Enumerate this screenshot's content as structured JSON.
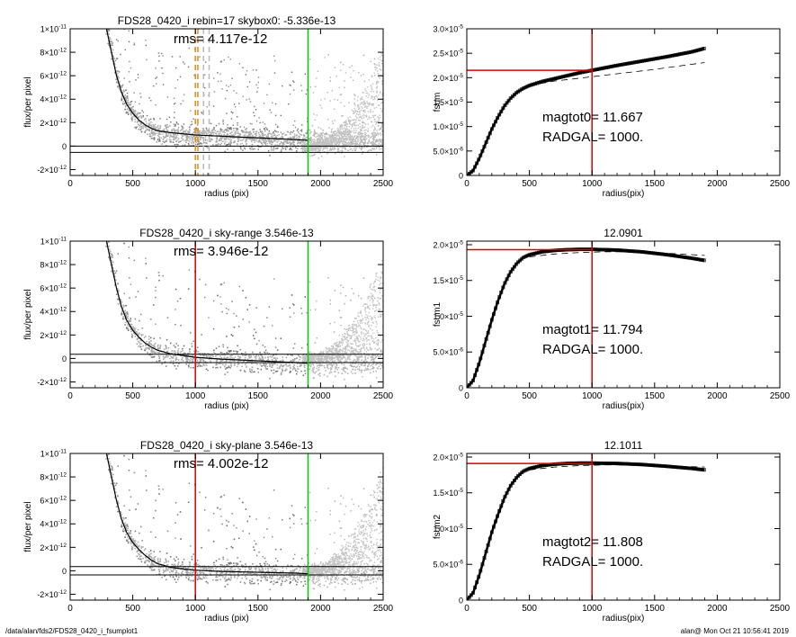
{
  "footer": {
    "path": "/data/alan/fds2/FDS28_0420_i_fsumplot1",
    "stamp": "alan@  Mon Oct 21 10:56:41 2019"
  },
  "chart_data": [
    {
      "type": "scatter",
      "title": "FDS28_0420_i rebin=17    skybox0: -5.336e-13",
      "annotation": "rms= 4.117e-12",
      "xlabel": "radius (pix)",
      "ylabel": "flux/per pixel",
      "xlim": [
        0,
        2500
      ],
      "ylim": [
        -2.5e-12,
        1e-11
      ],
      "xticks": [
        0,
        500,
        1000,
        1500,
        2000,
        2500
      ],
      "xtick_labels": [
        "0",
        "500",
        "1000",
        "1500",
        "2000",
        "2500"
      ],
      "yticks": [
        -2e-12,
        0,
        2e-12,
        4e-12,
        6e-12,
        8e-12,
        1e-11
      ],
      "ytick_labels": [
        [
          "-2",
          "-12"
        ],
        [
          "0",
          ""
        ],
        [
          "2",
          "-12"
        ],
        [
          "4",
          "-12"
        ],
        [
          "6",
          "-12"
        ],
        [
          "8",
          "-12"
        ],
        [
          "1",
          "-11"
        ]
      ],
      "hlines": [
        0,
        -5.336e-13
      ],
      "vlines": [
        {
          "x": 1900,
          "color": "#00cc00",
          "style": "solid"
        },
        {
          "x": 1000,
          "color": "#e08a1e",
          "style": "dashed"
        },
        {
          "x": 1020,
          "color": "#e08a1e",
          "style": "dashed"
        },
        {
          "x": 1065,
          "color": "#bbbbbb",
          "style": "dashed"
        },
        {
          "x": 1110,
          "color": "#bbbbbb",
          "style": "dashed"
        }
      ],
      "profile": {
        "x": [
          290,
          330,
          370,
          410,
          450,
          500,
          550,
          600,
          650,
          700,
          800,
          900,
          1000,
          1200,
          1400,
          1600,
          1800,
          1900
        ],
        "y": [
          1e-11,
          8e-12,
          6e-12,
          4.6e-12,
          3.6e-12,
          2.8e-12,
          2.2e-12,
          1.8e-12,
          1.5e-12,
          1.3e-12,
          1.15e-12,
          1.05e-12,
          9.5e-13,
          8.5e-13,
          7.5e-13,
          6.5e-13,
          5.5e-13,
          5e-13
        ]
      }
    },
    {
      "type": "line",
      "title": "",
      "annotation_lines": [
        "magtot0=  11.667",
        "RADGAL=   1000."
      ],
      "xlabel": "radius(pix)",
      "ylabel": "fsum",
      "xlim": [
        0,
        2500
      ],
      "ylim": [
        0,
        3e-05
      ],
      "xticks": [
        0,
        500,
        1000,
        1500,
        2000,
        2500
      ],
      "xtick_labels": [
        "0",
        "500",
        "1000",
        "1500",
        "2000",
        "2500"
      ],
      "yticks": [
        0,
        5e-06,
        1e-05,
        1.5e-05,
        2e-05,
        2.5e-05,
        3e-05
      ],
      "ytick_labels": [
        [
          "0",
          ""
        ],
        [
          "5.0",
          "-6"
        ],
        [
          "1.0",
          "-5"
        ],
        [
          "1.5",
          "-5"
        ],
        [
          "2.0",
          "-5"
        ],
        [
          "2.5",
          "-5"
        ],
        [
          "3.0",
          "-5"
        ]
      ],
      "vline": {
        "x": 1000,
        "color": "#dd0000"
      },
      "hline": {
        "y": 2.15e-05,
        "x_to": 1000,
        "color": "#dd0000"
      },
      "growth_curve": {
        "x": [
          0,
          50,
          100,
          150,
          200,
          250,
          300,
          350,
          400,
          450,
          500,
          600,
          700,
          800,
          900,
          1000,
          1200,
          1400,
          1600,
          1800,
          1900
        ],
        "y": [
          0,
          1e-06,
          3.5e-06,
          6.5e-06,
          9.5e-06,
          1.2e-05,
          1.42e-05,
          1.58e-05,
          1.7e-05,
          1.78e-05,
          1.84e-05,
          1.92e-05,
          1.98e-05,
          2.04e-05,
          2.1e-05,
          2.15e-05,
          2.25e-05,
          2.34e-05,
          2.43e-05,
          2.53e-05,
          2.6e-05
        ]
      },
      "model_curve": {
        "x": [
          500,
          700,
          900,
          1100,
          1300,
          1500,
          1700,
          1900
        ],
        "y": [
          1.84e-05,
          1.93e-05,
          1.99e-05,
          2.05e-05,
          2.11e-05,
          2.17e-05,
          2.24e-05,
          2.31e-05
        ]
      }
    },
    {
      "type": "scatter",
      "title": "FDS28_0420_i sky-range  3.546e-13",
      "annotation": "rms= 3.946e-12",
      "xlabel": "radius (pix)",
      "ylabel": "flux/per pixel",
      "xlim": [
        0,
        2500
      ],
      "ylim": [
        -2.5e-12,
        1e-11
      ],
      "xticks": [
        0,
        500,
        1000,
        1500,
        2000,
        2500
      ],
      "xtick_labels": [
        "0",
        "500",
        "1000",
        "1500",
        "2000",
        "2500"
      ],
      "yticks": [
        -2e-12,
        0,
        2e-12,
        4e-12,
        6e-12,
        8e-12,
        1e-11
      ],
      "ytick_labels": [
        [
          "-2",
          "-12"
        ],
        [
          "0",
          ""
        ],
        [
          "2",
          "-12"
        ],
        [
          "4",
          "-12"
        ],
        [
          "6",
          "-12"
        ],
        [
          "8",
          "-12"
        ],
        [
          "1",
          "-11"
        ]
      ],
      "hlines": [
        3.546e-13,
        -3.546e-13
      ],
      "vlines": [
        {
          "x": 1000,
          "color": "#dd0000",
          "style": "solid"
        },
        {
          "x": 1900,
          "color": "#00cc00",
          "style": "solid"
        }
      ],
      "profile": {
        "x": [
          290,
          330,
          370,
          410,
          450,
          500,
          550,
          600,
          650,
          700,
          800,
          900,
          1000,
          1200,
          1400,
          1600,
          1800,
          1900
        ],
        "y": [
          1e-11,
          8e-12,
          6e-12,
          4.4e-12,
          3.3e-12,
          2.4e-12,
          1.8e-12,
          1.3e-12,
          9.5e-13,
          7e-13,
          4e-13,
          2.5e-13,
          1e-13,
          -5e-14,
          -1.5e-13,
          -2.5e-13,
          -3.5e-13,
          -4e-13
        ]
      }
    },
    {
      "type": "line",
      "title": "12.0901",
      "annotation_lines": [
        "magtot1=  11.794",
        "RADGAL=   1000."
      ],
      "xlabel": "radius(pix)",
      "ylabel": "fsum1",
      "xlim": [
        0,
        2500
      ],
      "ylim": [
        0,
        2.05e-05
      ],
      "xticks": [
        0,
        500,
        1000,
        1500,
        2000,
        2500
      ],
      "xtick_labels": [
        "0",
        "500",
        "1000",
        "1500",
        "2000",
        "2500"
      ],
      "yticks": [
        0,
        5e-06,
        1e-05,
        1.5e-05,
        2e-05
      ],
      "ytick_labels": [
        [
          "0",
          ""
        ],
        [
          "5.0",
          "-6"
        ],
        [
          "1.0",
          "-5"
        ],
        [
          "1.5",
          "-5"
        ],
        [
          "2.0",
          "-5"
        ]
      ],
      "vline": {
        "x": 1000,
        "color": "#dd0000"
      },
      "hline": {
        "y": 1.93e-05,
        "x_to": 1000,
        "color": "#dd0000"
      },
      "growth_curve": {
        "x": [
          0,
          50,
          100,
          150,
          200,
          250,
          300,
          350,
          400,
          450,
          500,
          600,
          700,
          800,
          900,
          1000,
          1200,
          1400,
          1600,
          1800,
          1900
        ],
        "y": [
          0,
          1e-06,
          3.5e-06,
          6.5e-06,
          9.5e-06,
          1.22e-05,
          1.45e-05,
          1.62e-05,
          1.74e-05,
          1.82e-05,
          1.86e-05,
          1.9e-05,
          1.92e-05,
          1.93e-05,
          1.935e-05,
          1.935e-05,
          1.925e-05,
          1.9e-05,
          1.86e-05,
          1.81e-05,
          1.78e-05
        ]
      },
      "model_curve": {
        "x": [
          500,
          700,
          900,
          1100,
          1300,
          1500,
          1700,
          1900
        ],
        "y": [
          1.83e-05,
          1.87e-05,
          1.89e-05,
          1.9e-05,
          1.9e-05,
          1.89e-05,
          1.87e-05,
          1.85e-05
        ]
      }
    },
    {
      "type": "scatter",
      "title": "FDS28_0420_i sky-plane  3.546e-13",
      "annotation": "rms= 4.002e-12",
      "xlabel": "radius (pix)",
      "ylabel": "flux/per pixel",
      "xlim": [
        0,
        2500
      ],
      "ylim": [
        -2.5e-12,
        1e-11
      ],
      "xticks": [
        0,
        500,
        1000,
        1500,
        2000,
        2500
      ],
      "xtick_labels": [
        "0",
        "500",
        "1000",
        "1500",
        "2000",
        "2500"
      ],
      "yticks": [
        -2e-12,
        0,
        2e-12,
        4e-12,
        6e-12,
        8e-12,
        1e-11
      ],
      "ytick_labels": [
        [
          "-2",
          "-12"
        ],
        [
          "0",
          ""
        ],
        [
          "2",
          "-12"
        ],
        [
          "4",
          "-12"
        ],
        [
          "6",
          "-12"
        ],
        [
          "8",
          "-12"
        ],
        [
          "1",
          "-11"
        ]
      ],
      "hlines": [
        3.546e-13,
        -3.546e-13
      ],
      "vlines": [
        {
          "x": 1000,
          "color": "#dd0000",
          "style": "solid"
        },
        {
          "x": 1900,
          "color": "#00cc00",
          "style": "solid"
        }
      ],
      "profile": {
        "x": [
          290,
          330,
          370,
          410,
          450,
          500,
          550,
          600,
          650,
          700,
          800,
          900,
          1000,
          1200,
          1400,
          1600,
          1800,
          1900
        ],
        "y": [
          1e-11,
          8e-12,
          6e-12,
          4.4e-12,
          3.3e-12,
          2.4e-12,
          1.8e-12,
          1.3e-12,
          9e-13,
          6e-13,
          3e-13,
          1.5e-13,
          5e-14,
          -5e-14,
          -1e-13,
          -1.5e-13,
          -2e-13,
          -2.5e-13
        ]
      }
    },
    {
      "type": "line",
      "title": "12.1011",
      "annotation_lines": [
        "magtot2=  11.808",
        "RADGAL=   1000."
      ],
      "xlabel": "radius(pix)",
      "ylabel": "fsum2",
      "xlim": [
        0,
        2500
      ],
      "ylim": [
        0,
        2.05e-05
      ],
      "xticks": [
        0,
        500,
        1000,
        1500,
        2000,
        2500
      ],
      "xtick_labels": [
        "0",
        "500",
        "1000",
        "1500",
        "2000",
        "2500"
      ],
      "yticks": [
        0,
        5e-06,
        1e-05,
        1.5e-05,
        2e-05
      ],
      "ytick_labels": [
        [
          "0",
          ""
        ],
        [
          "5.0",
          "-6"
        ],
        [
          "1.0",
          "-5"
        ],
        [
          "1.5",
          "-5"
        ],
        [
          "2.0",
          "-5"
        ]
      ],
      "vline": {
        "x": 1000,
        "color": "#dd0000"
      },
      "hline": {
        "y": 1.91e-05,
        "x_to": 1000,
        "color": "#dd0000"
      },
      "growth_curve": {
        "x": [
          0,
          50,
          100,
          150,
          200,
          250,
          300,
          350,
          400,
          450,
          500,
          600,
          700,
          800,
          900,
          1000,
          1200,
          1400,
          1600,
          1800,
          1900
        ],
        "y": [
          0,
          1e-06,
          3.5e-06,
          6.5e-06,
          9.5e-06,
          1.2e-05,
          1.43e-05,
          1.6e-05,
          1.72e-05,
          1.8e-05,
          1.84e-05,
          1.88e-05,
          1.9e-05,
          1.91e-05,
          1.915e-05,
          1.915e-05,
          1.91e-05,
          1.895e-05,
          1.87e-05,
          1.84e-05,
          1.82e-05
        ]
      },
      "model_curve": {
        "x": [
          500,
          700,
          900,
          1100,
          1300,
          1500,
          1700,
          1900
        ],
        "y": [
          1.82e-05,
          1.86e-05,
          1.88e-05,
          1.89e-05,
          1.89e-05,
          1.885e-05,
          1.87e-05,
          1.86e-05
        ]
      }
    }
  ]
}
